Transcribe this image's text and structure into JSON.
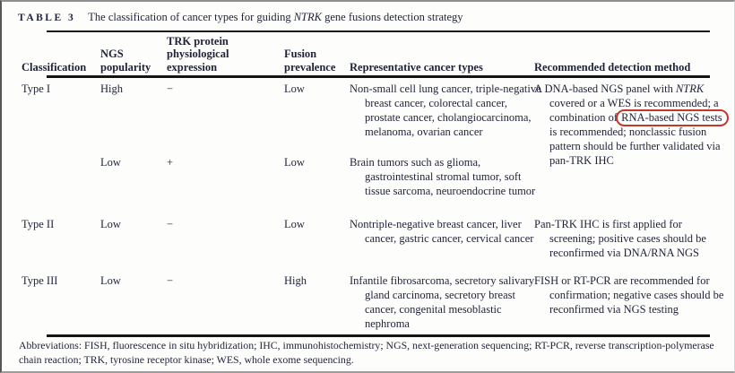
{
  "figure": {
    "label": "TABLE 3",
    "caption_pre": "The classification of cancer types for guiding ",
    "caption_gene": "NTRK",
    "caption_post": " gene fusions detection strategy"
  },
  "columns": [
    "Classification",
    "NGS popularity",
    "TRK protein physiological expression",
    "Fusion prevalence",
    "Representative cancer types",
    "Recommended detection method"
  ],
  "rows": [
    {
      "classification": "Type I",
      "ngs_popularity": "High",
      "trk_expression": "−",
      "fusion_prevalence": "Low",
      "cancer_types": "Non-small cell lung cancer, triple-negative breast cancer, colorectal cancer, prostate cancer, cholangiocarcinoma, melanoma, ovarian cancer",
      "method_pre": "A DNA-based NGS panel with ",
      "method_gene": "NTRK",
      "method_mid": " covered or a WES is recommended; a combination of ",
      "method_highlighted": "RNA-based NGS tests",
      "method_post": " is recommended; nonclassic fusion pattern should be further validated via pan-TRK IHC"
    },
    {
      "classification": "",
      "ngs_popularity": "Low",
      "trk_expression": "+",
      "fusion_prevalence": "Low",
      "cancer_types": "Brain tumors such as glioma, gastrointestinal stromal tumor, soft tissue sarcoma, neuroendocrine tumor"
    },
    {
      "classification": "Type II",
      "ngs_popularity": "Low",
      "trk_expression": "−",
      "fusion_prevalence": "Low",
      "cancer_types": "Nontriple-negative breast cancer, liver cancer, gastric cancer, cervical cancer",
      "method": "Pan-TRK IHC is first applied for screening; positive cases should be reconfirmed via DNA/RNA NGS"
    },
    {
      "classification": "Type III",
      "ngs_popularity": "Low",
      "trk_expression": "−",
      "fusion_prevalence": "High",
      "cancer_types": "Infantile fibrosarcoma, secretory salivary gland carcinoma, secretory breast cancer, congenital mesoblastic nephroma",
      "method": "FISH or RT-PCR are recommended for confirmation; negative cases should be reconfirmed via NGS testing"
    }
  ],
  "annotation": {
    "type": "red-oval",
    "highlighted_text": "RNA-based NGS tests",
    "color": "#bf3a2b"
  },
  "footnote": "Abbreviations: FISH, fluorescence in situ hybridization; IHC, immunohistochemistry; NGS, next-generation sequencing; RT-PCR, reverse transcription-polymerase chain reaction; TRK, tyrosine receptor kinase; WES, whole exome sequencing."
}
